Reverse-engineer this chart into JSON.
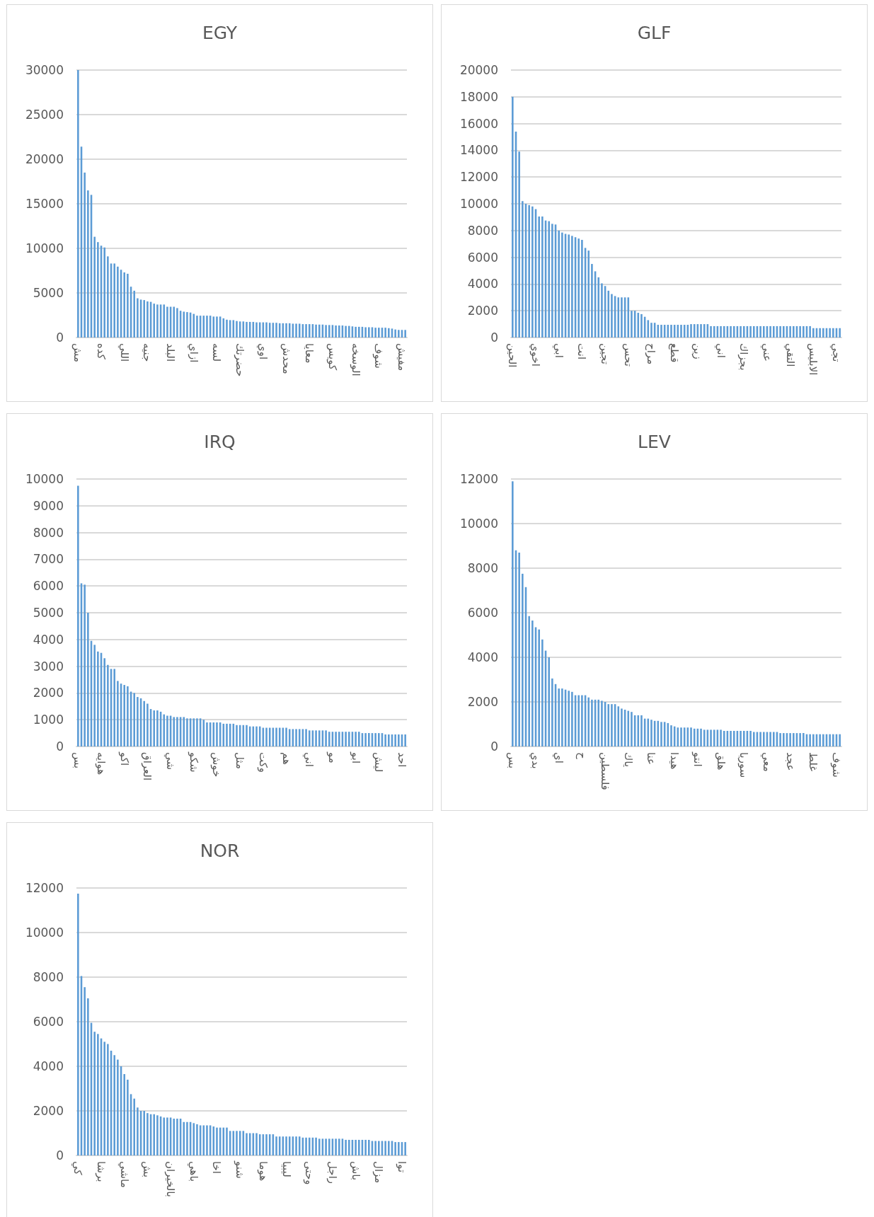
{
  "chart_data": [
    {
      "type": "bar",
      "title": "EGY",
      "color": "#5b9bd5",
      "ylim": [
        0,
        30000
      ],
      "yticks": [
        0,
        5000,
        10000,
        15000,
        20000,
        25000,
        30000
      ],
      "grid": "y",
      "categories": [
        "مش",
        null,
        null,
        null,
        null,
        null,
        null,
        "كده",
        null,
        null,
        null,
        null,
        null,
        null,
        "اللي",
        null,
        null,
        null,
        null,
        null,
        null,
        "جنيه",
        null,
        null,
        null,
        null,
        null,
        null,
        "البلد",
        null,
        null,
        null,
        null,
        null,
        null,
        "ازاي",
        null,
        null,
        null,
        null,
        null,
        null,
        "لسه",
        null,
        null,
        null,
        null,
        null,
        null,
        "حضرتك",
        null,
        null,
        null,
        null,
        null,
        null,
        "اوي",
        null,
        null,
        null,
        null,
        null,
        null,
        "محدش",
        null,
        null,
        null,
        null,
        null,
        null,
        "معايا",
        null,
        null,
        null,
        null,
        null,
        null,
        "كويس",
        null,
        null,
        null,
        null,
        null,
        null,
        "الوسخه",
        null,
        null,
        null,
        null,
        null,
        null,
        "شوف",
        null,
        null,
        null,
        null,
        null,
        null,
        "مفيش",
        null
      ],
      "values": [
        30000,
        21400,
        18500,
        16500,
        16000,
        11300,
        10700,
        10300,
        10100,
        9100,
        8300,
        8300,
        7950,
        7600,
        7300,
        7150,
        5700,
        5250,
        4400,
        4250,
        4200,
        4050,
        4000,
        3800,
        3700,
        3700,
        3700,
        3450,
        3450,
        3450,
        3300,
        3000,
        2900,
        2850,
        2800,
        2650,
        2450,
        2450,
        2450,
        2450,
        2450,
        2350,
        2350,
        2350,
        2150,
        2000,
        1950,
        1950,
        1850,
        1800,
        1800,
        1750,
        1750,
        1750,
        1700,
        1700,
        1700,
        1700,
        1650,
        1650,
        1650,
        1600,
        1600,
        1600,
        1600,
        1550,
        1550,
        1550,
        1500,
        1500,
        1500,
        1500,
        1450,
        1450,
        1450,
        1400,
        1400,
        1400,
        1350,
        1350,
        1350,
        1300,
        1300,
        1250,
        1200,
        1200,
        1200,
        1150,
        1150,
        1150,
        1100,
        1100,
        1100,
        1100,
        1050,
        1000,
        900,
        850,
        850,
        850
      ]
    },
    {
      "type": "bar",
      "title": "GLF",
      "color": "#5b9bd5",
      "ylim": [
        0,
        20000
      ],
      "yticks": [
        0,
        2000,
        4000,
        6000,
        8000,
        10000,
        12000,
        14000,
        16000,
        18000,
        20000
      ],
      "grid": "y",
      "categories": [
        "الحين",
        null,
        null,
        null,
        null,
        null,
        null,
        "اخوي",
        null,
        null,
        null,
        null,
        null,
        null,
        "ابي",
        null,
        null,
        null,
        null,
        null,
        null,
        "انت",
        null,
        null,
        null,
        null,
        null,
        null,
        "تجين",
        null,
        null,
        null,
        null,
        null,
        null,
        "تحس",
        null,
        null,
        null,
        null,
        null,
        null,
        "مراح",
        null,
        null,
        null,
        null,
        null,
        null,
        "قطع",
        null,
        null,
        null,
        null,
        null,
        null,
        "زين",
        null,
        null,
        null,
        null,
        null,
        null,
        "اني",
        null,
        null,
        null,
        null,
        null,
        null,
        "بجزاك",
        null,
        null,
        null,
        null,
        null,
        null,
        "عني",
        null,
        null,
        null,
        null,
        null,
        null,
        "التقي",
        null,
        null,
        null,
        null,
        null,
        null,
        "الابليس",
        null,
        null,
        null,
        null,
        null,
        null,
        "تجي",
        null
      ],
      "values": [
        18000,
        15400,
        13900,
        10200,
        10000,
        9900,
        9800,
        9600,
        9050,
        9050,
        8750,
        8700,
        8500,
        8450,
        8000,
        7850,
        7750,
        7700,
        7600,
        7500,
        7400,
        7300,
        6700,
        6500,
        5500,
        4950,
        4500,
        4050,
        3850,
        3500,
        3250,
        3100,
        3000,
        3000,
        3000,
        3000,
        2000,
        2000,
        1850,
        1750,
        1550,
        1300,
        1100,
        1100,
        950,
        950,
        950,
        950,
        950,
        950,
        950,
        950,
        950,
        950,
        1000,
        1000,
        1000,
        1000,
        1000,
        1000,
        850,
        850,
        850,
        850,
        850,
        850,
        850,
        850,
        850,
        850,
        850,
        850,
        850,
        850,
        850,
        850,
        850,
        850,
        850,
        850,
        850,
        850,
        850,
        850,
        850,
        850,
        850,
        850,
        850,
        850,
        850,
        700,
        700,
        700,
        700,
        700,
        700,
        700,
        700,
        700
      ]
    },
    {
      "type": "bar",
      "title": "IRQ",
      "color": "#5b9bd5",
      "ylim": [
        0,
        10000
      ],
      "yticks": [
        0,
        1000,
        2000,
        3000,
        4000,
        5000,
        6000,
        7000,
        8000,
        9000,
        10000
      ],
      "grid": "y",
      "categories": [
        "بس",
        null,
        null,
        null,
        null,
        null,
        null,
        "هوايه",
        null,
        null,
        null,
        null,
        null,
        null,
        "اكو",
        null,
        null,
        null,
        null,
        null,
        null,
        "العراق",
        null,
        null,
        null,
        null,
        null,
        null,
        "شي",
        null,
        null,
        null,
        null,
        null,
        null,
        "شكو",
        null,
        null,
        null,
        null,
        null,
        null,
        "خوش",
        null,
        null,
        null,
        null,
        null,
        null,
        "مثل",
        null,
        null,
        null,
        null,
        null,
        null,
        "وكت",
        null,
        null,
        null,
        null,
        null,
        null,
        "هم",
        null,
        null,
        null,
        null,
        null,
        null,
        "اني",
        null,
        null,
        null,
        null,
        null,
        null,
        "مو",
        null,
        null,
        null,
        null,
        null,
        null,
        "ابو",
        null,
        null,
        null,
        null,
        null,
        null,
        "ليش",
        null,
        null,
        null,
        null,
        null,
        null,
        "احد",
        null
      ],
      "values": [
        9750,
        6100,
        6050,
        5000,
        3950,
        3800,
        3550,
        3500,
        3300,
        3050,
        2900,
        2900,
        2450,
        2350,
        2300,
        2250,
        2050,
        2000,
        1850,
        1800,
        1700,
        1600,
        1400,
        1350,
        1350,
        1300,
        1200,
        1150,
        1150,
        1100,
        1100,
        1100,
        1100,
        1050,
        1050,
        1050,
        1050,
        1050,
        1000,
        900,
        900,
        900,
        900,
        900,
        850,
        850,
        850,
        850,
        800,
        800,
        800,
        800,
        750,
        750,
        750,
        750,
        700,
        700,
        700,
        700,
        700,
        700,
        700,
        700,
        650,
        650,
        650,
        650,
        650,
        650,
        600,
        600,
        600,
        600,
        600,
        600,
        550,
        550,
        550,
        550,
        550,
        550,
        550,
        550,
        550,
        550,
        500,
        500,
        500,
        500,
        500,
        500,
        500,
        450,
        450,
        450,
        450,
        450,
        450,
        450
      ]
    },
    {
      "type": "bar",
      "title": "LEV",
      "color": "#5b9bd5",
      "ylim": [
        0,
        12000
      ],
      "yticks": [
        0,
        2000,
        4000,
        6000,
        8000,
        10000,
        12000
      ],
      "grid": "y",
      "categories": [
        "بس",
        null,
        null,
        null,
        null,
        null,
        null,
        "بدي",
        null,
        null,
        null,
        null,
        null,
        null,
        "اي",
        null,
        null,
        null,
        null,
        null,
        null,
        "ح",
        null,
        null,
        null,
        null,
        null,
        null,
        "فلسطين",
        null,
        null,
        null,
        null,
        null,
        null,
        "ياك",
        null,
        null,
        null,
        null,
        null,
        null,
        "عنا",
        null,
        null,
        null,
        null,
        null,
        null,
        "هيدا",
        null,
        null,
        null,
        null,
        null,
        null,
        "انتو",
        null,
        null,
        null,
        null,
        null,
        null,
        "هلق",
        null,
        null,
        null,
        null,
        null,
        null,
        "سوريا",
        null,
        null,
        null,
        null,
        null,
        null,
        "معي",
        null,
        null,
        null,
        null,
        null,
        null,
        "عجد",
        null,
        null,
        null,
        null,
        null,
        null,
        "غلط",
        null,
        null,
        null,
        null,
        null,
        null,
        "شوف",
        null
      ],
      "values": [
        11900,
        8800,
        8700,
        7750,
        7150,
        5850,
        5650,
        5350,
        5250,
        4800,
        4300,
        4000,
        3050,
        2800,
        2600,
        2600,
        2550,
        2500,
        2450,
        2300,
        2300,
        2300,
        2300,
        2200,
        2100,
        2100,
        2100,
        2050,
        2000,
        1900,
        1900,
        1900,
        1800,
        1700,
        1650,
        1600,
        1550,
        1400,
        1400,
        1400,
        1250,
        1250,
        1200,
        1150,
        1150,
        1100,
        1100,
        1050,
        950,
        900,
        850,
        850,
        850,
        850,
        850,
        800,
        800,
        800,
        750,
        750,
        750,
        750,
        750,
        750,
        700,
        700,
        700,
        700,
        700,
        700,
        700,
        700,
        700,
        650,
        650,
        650,
        650,
        650,
        650,
        650,
        650,
        600,
        600,
        600,
        600,
        600,
        600,
        600,
        600,
        550,
        550,
        550,
        550,
        550,
        550,
        550,
        550,
        550,
        550,
        550
      ]
    },
    {
      "type": "bar",
      "title": "NOR",
      "color": "#5b9bd5",
      "ylim": [
        0,
        12000
      ],
      "yticks": [
        0,
        2000,
        4000,
        6000,
        8000,
        10000,
        12000
      ],
      "grid": "y",
      "categories": [
        "كي",
        null,
        null,
        null,
        null,
        null,
        null,
        "برشا",
        null,
        null,
        null,
        null,
        null,
        null,
        "ماشي",
        null,
        null,
        null,
        null,
        null,
        null,
        "بش",
        null,
        null,
        null,
        null,
        null,
        null,
        "بالخيران",
        null,
        null,
        null,
        null,
        null,
        null,
        "باهي",
        null,
        null,
        null,
        null,
        null,
        null,
        "اخا",
        null,
        null,
        null,
        null,
        null,
        null,
        "شنو",
        null,
        null,
        null,
        null,
        null,
        null,
        "هوما",
        null,
        null,
        null,
        null,
        null,
        null,
        "ليبيا",
        null,
        null,
        null,
        null,
        null,
        null,
        "وحتى",
        null,
        null,
        null,
        null,
        null,
        null,
        "راجل",
        null,
        null,
        null,
        null,
        null,
        null,
        "باش",
        null,
        null,
        null,
        null,
        null,
        null,
        "مزال",
        null,
        null,
        null,
        null,
        null,
        null,
        "توا",
        null
      ],
      "values": [
        11750,
        8050,
        7550,
        7050,
        5950,
        5550,
        5450,
        5250,
        5100,
        5000,
        4700,
        4500,
        4300,
        4000,
        3650,
        3400,
        2750,
        2550,
        2150,
        2000,
        2000,
        1900,
        1850,
        1850,
        1800,
        1750,
        1700,
        1700,
        1700,
        1650,
        1650,
        1650,
        1500,
        1500,
        1500,
        1450,
        1400,
        1350,
        1350,
        1350,
        1350,
        1300,
        1250,
        1250,
        1250,
        1250,
        1100,
        1100,
        1100,
        1100,
        1100,
        1000,
        1000,
        1000,
        1000,
        950,
        950,
        950,
        950,
        950,
        850,
        850,
        850,
        850,
        850,
        850,
        850,
        850,
        800,
        800,
        800,
        800,
        800,
        750,
        750,
        750,
        750,
        750,
        750,
        750,
        750,
        700,
        700,
        700,
        700,
        700,
        700,
        700,
        700,
        650,
        650,
        650,
        650,
        650,
        650,
        650,
        600,
        600,
        600,
        600
      ]
    }
  ]
}
